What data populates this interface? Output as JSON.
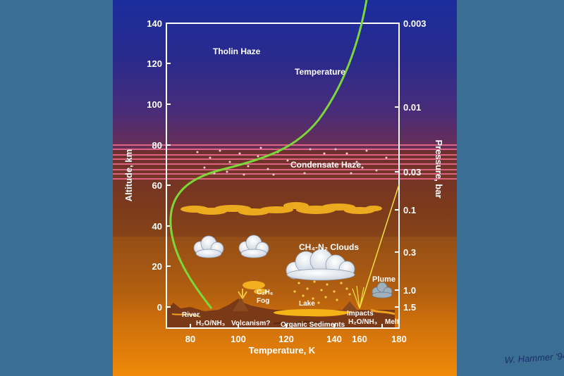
{
  "axes": {
    "left_label": "Altitude, km",
    "right_label": "Pressure, bar",
    "bottom_label": "Temperature, K",
    "altitude_ticks": [
      "0",
      "20",
      "40",
      "60",
      "80",
      "100",
      "120",
      "140"
    ],
    "temperature_ticks": [
      "80",
      "100",
      "120",
      "140",
      "160",
      "180"
    ],
    "pressure_ticks": [
      "0.003",
      "0.01",
      "0.03",
      "0.1",
      "0.3",
      "1.0",
      "1.5"
    ]
  },
  "labels": {
    "tholin_haze": "Tholin Haze",
    "temperature": "Temperature",
    "condensate_haze": "Condensate Haze",
    "clouds": "CH₄-N₂ Clouds",
    "plume": "Plume",
    "c2h6": "C₂H₆",
    "fog": "Fog",
    "lake": "Lake",
    "river": "River",
    "impacts": "Impacts",
    "h2o_nh3_left": "H₂O/NH₃",
    "volcanism": "Volcanism?",
    "organic_sediments": "Organic Sediments",
    "h2o_nh3_right": "H₂O/NH₃",
    "melt": "Melt"
  },
  "signature": "W. Hammer '94",
  "colors": {
    "temperature_curve": "#7cd83a",
    "frame": "#ffffff",
    "condensate_lines": "#e86a8a",
    "haze_clouds": "#f2b020",
    "plume_line": "#f0e040",
    "margin": "#3a6e93"
  }
}
